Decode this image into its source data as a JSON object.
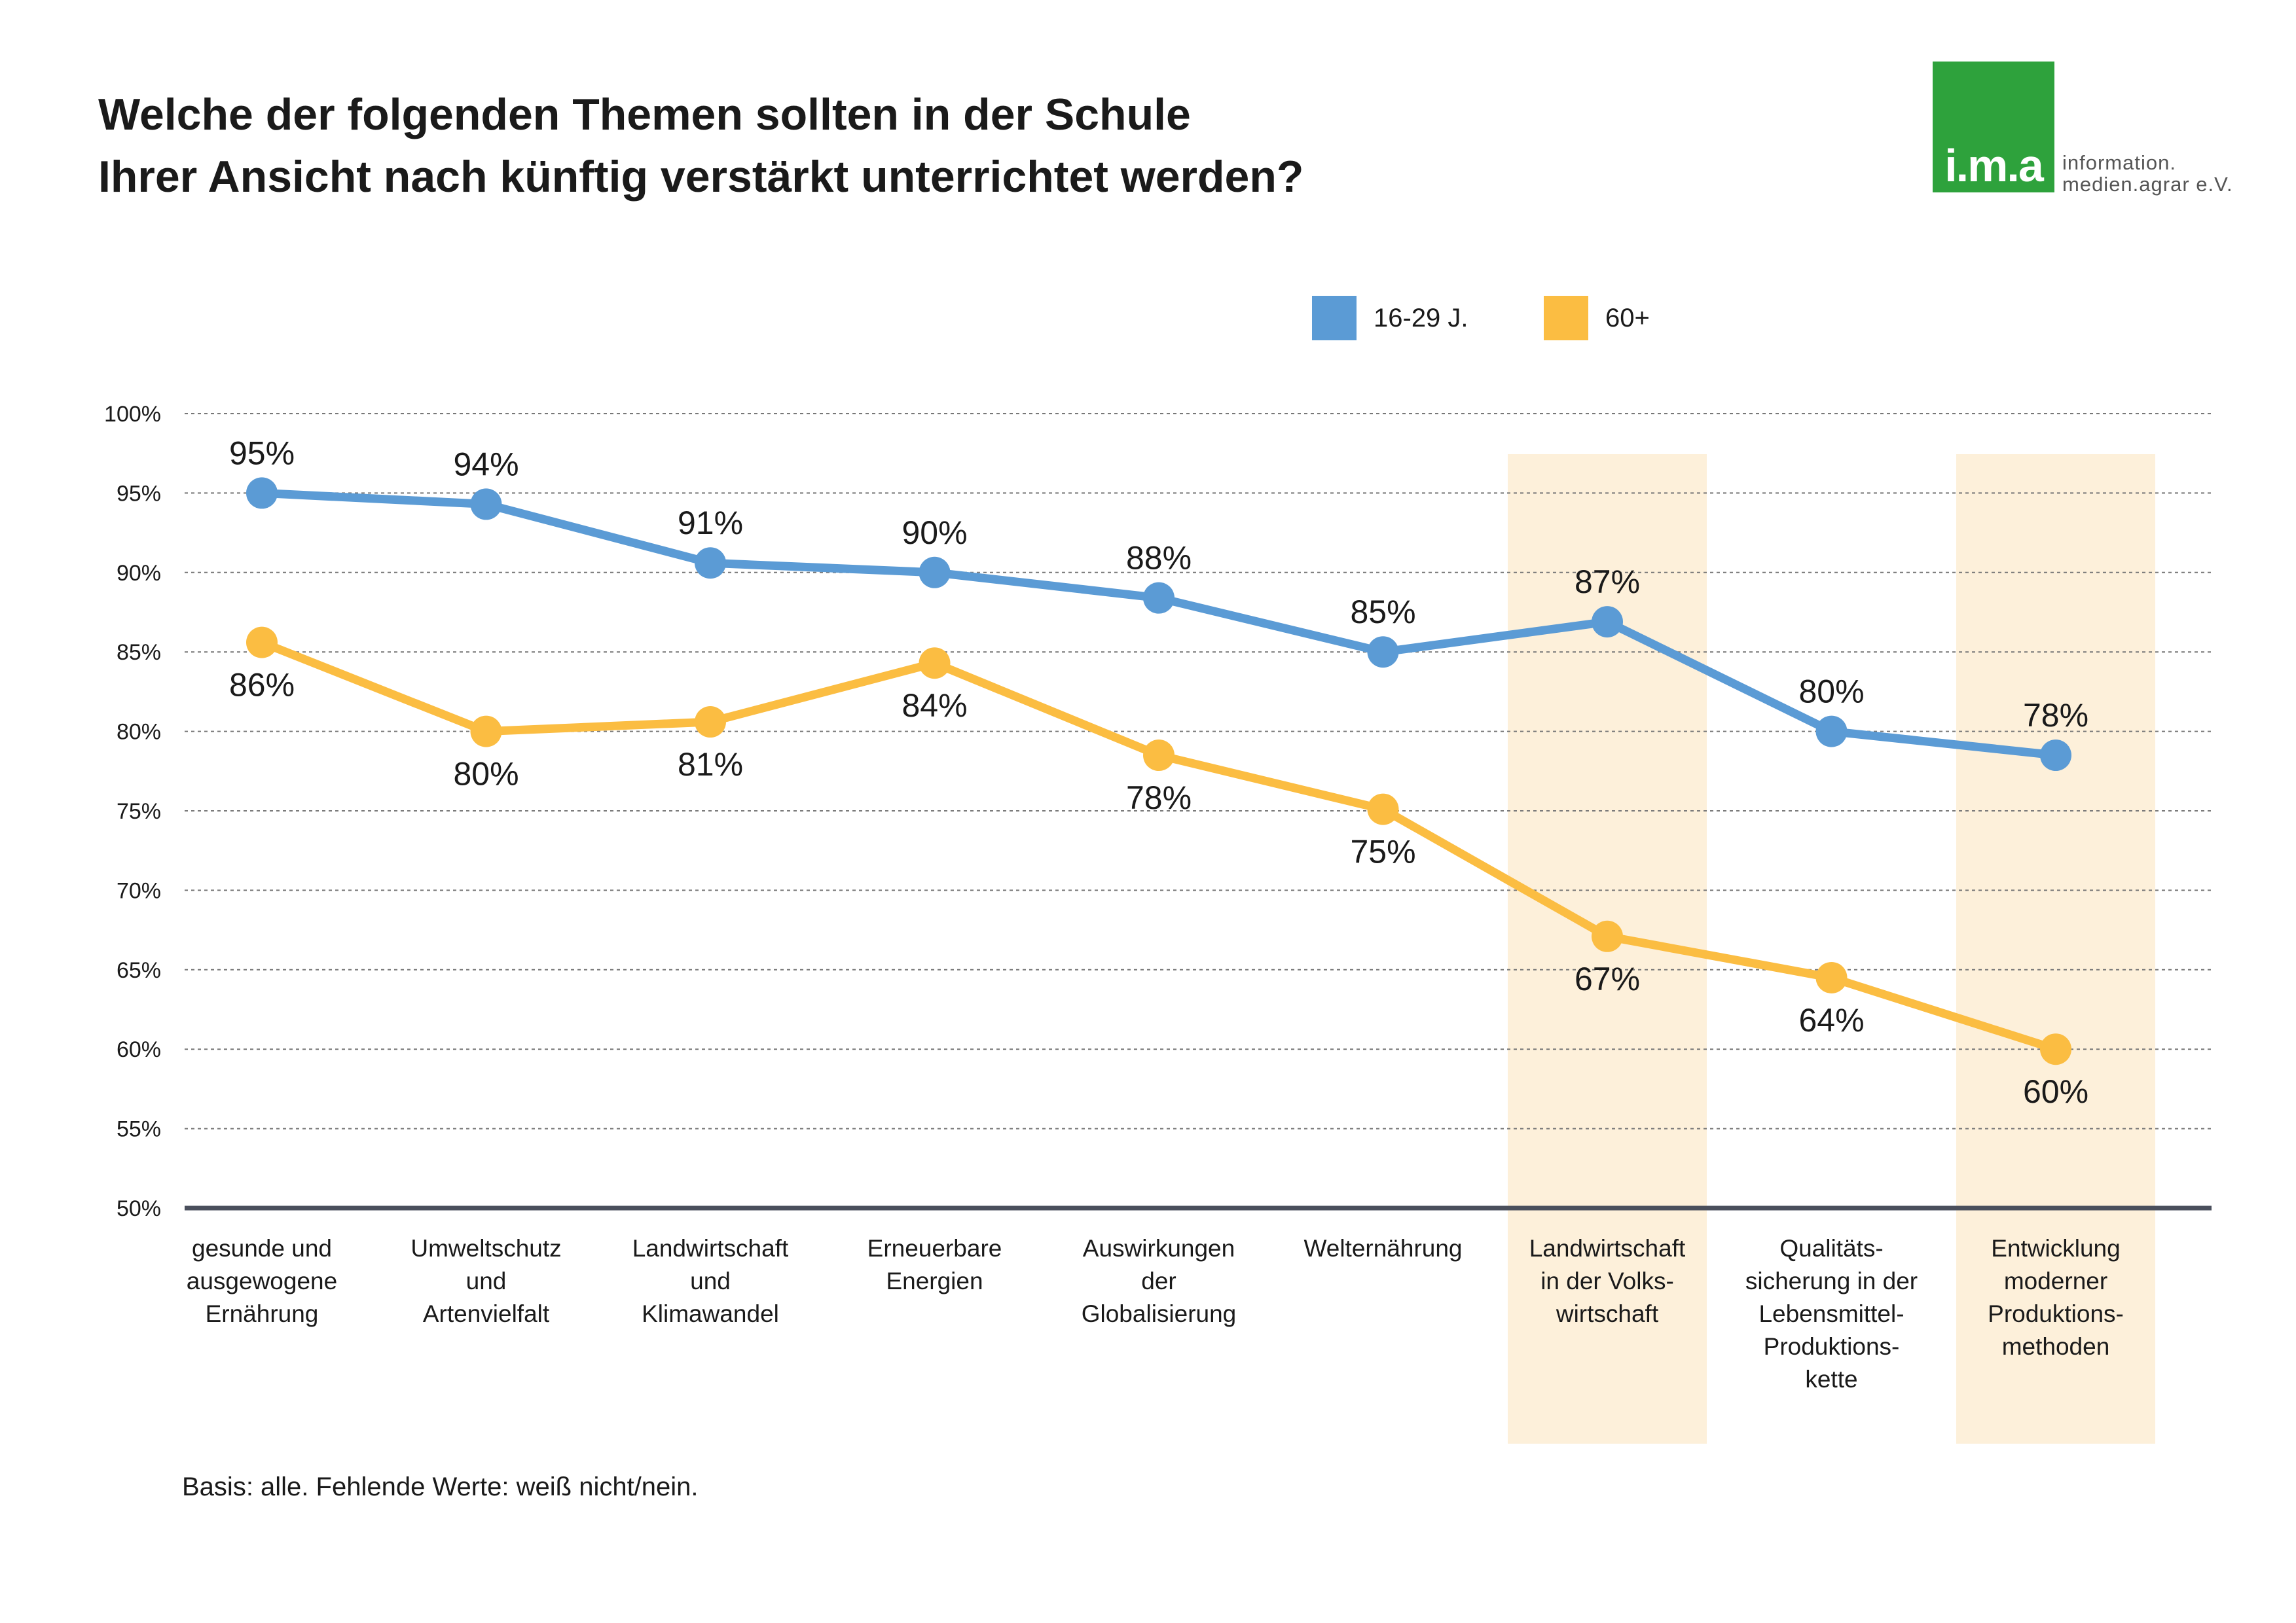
{
  "title_lines": [
    "Welche der folgenden Themen sollten in der Schule",
    "Ihrer Ansicht nach künftig verstärkt unterrichtet werden?"
  ],
  "logo": {
    "mark": "i.m.a",
    "org_lines": [
      "information.",
      "medien.agrar e.V."
    ],
    "color": "#2ea23c"
  },
  "footnote": "Basis: alle. Fehlende Werte: weiß nicht/nein.",
  "chart_data": {
    "type": "line",
    "categories": [
      [
        "gesunde und",
        "ausgewogene",
        "Ernährung"
      ],
      [
        "Umweltschutz",
        "und",
        "Artenvielfalt"
      ],
      [
        "Landwirtschaft",
        "und",
        "Klimawandel"
      ],
      [
        "Erneuerbare",
        "Energien"
      ],
      [
        "Auswirkungen",
        "der",
        "Globalisierung"
      ],
      [
        "Welternährung"
      ],
      [
        "Landwirtschaft",
        "in der Volks-",
        "wirtschaft"
      ],
      [
        "Qualitäts-",
        "sicherung in der",
        "Lebensmittel-",
        "Produktions-",
        "kette"
      ],
      [
        "Entwicklung",
        "moderner",
        "Produktions-",
        "methoden"
      ]
    ],
    "series": [
      {
        "name": "16-29 J.",
        "color": "#5b9bd5",
        "values": [
          95,
          94.3,
          90.6,
          90,
          88.4,
          85,
          86.9,
          80,
          78.5
        ],
        "labels": [
          "95%",
          "94%",
          "91%",
          "90%",
          "88%",
          "85%",
          "87%",
          "80%",
          "78%"
        ]
      },
      {
        "name": "60+",
        "color": "#fbbd42",
        "values": [
          85.6,
          80,
          80.6,
          84.3,
          78.5,
          75.1,
          67.1,
          64.5,
          60
        ],
        "labels": [
          "86%",
          "80%",
          "81%",
          "84%",
          "78%",
          "75%",
          "67%",
          "64%",
          "60%"
        ]
      }
    ],
    "yticks": [
      "50%",
      "55%",
      "60%",
      "65%",
      "70%",
      "75%",
      "80%",
      "85%",
      "90%",
      "95%",
      "100%"
    ],
    "ylim": [
      50,
      100
    ],
    "highlighted_categories": [
      6,
      8
    ],
    "highlight_color": "#fdf0da",
    "grid": true,
    "legend_position": "top"
  }
}
